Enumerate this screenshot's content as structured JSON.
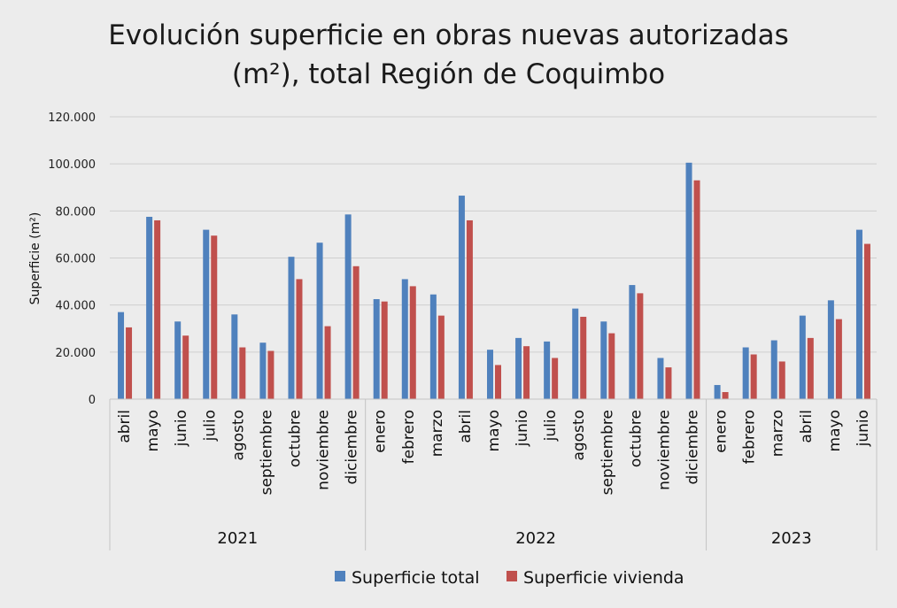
{
  "chart_data": {
    "type": "bar",
    "title_line1": "Evolución superficie en obras nuevas autorizadas",
    "title_line2": "(m²), total Región de Coquimbo",
    "ylabel": "Superficie  (m²)",
    "xlabel": "",
    "ylim": [
      0,
      120000
    ],
    "yticks": [
      0,
      20000,
      40000,
      60000,
      80000,
      100000,
      120000
    ],
    "ytick_labels": [
      "0",
      "20.000",
      "40.000",
      "60.000",
      "80.000",
      "100.000",
      "120.000"
    ],
    "grid": true,
    "legend_position": "bottom",
    "groups": [
      {
        "label": "2021",
        "categories": [
          "abril",
          "mayo",
          "junio",
          "julio",
          "agosto",
          "septiembre",
          "octubre",
          "noviembre",
          "diciembre"
        ]
      },
      {
        "label": "2022",
        "categories": [
          "enero",
          "febrero",
          "marzo",
          "abril",
          "mayo",
          "junio",
          "julio",
          "agosto",
          "septiembre",
          "octubre",
          "noviembre",
          "diciembre"
        ]
      },
      {
        "label": "2023",
        "categories": [
          "enero",
          "febrero",
          "marzo",
          "abril",
          "mayo",
          "junio"
        ]
      }
    ],
    "series": [
      {
        "name": "Superficie total",
        "color": "#4f81bd",
        "values": [
          37000,
          77500,
          33000,
          72000,
          36000,
          24000,
          60500,
          66500,
          78500,
          42500,
          51000,
          44500,
          86500,
          21000,
          26000,
          24500,
          38500,
          33000,
          48500,
          17500,
          100500,
          6000,
          22000,
          25000,
          35500,
          42000,
          72000
        ]
      },
      {
        "name": "Superficie vivienda",
        "color": "#c0504d",
        "values": [
          30500,
          76000,
          27000,
          69500,
          22000,
          20500,
          51000,
          31000,
          56500,
          41500,
          48000,
          35500,
          76000,
          14500,
          22500,
          17500,
          35000,
          28000,
          45000,
          13500,
          93000,
          3000,
          19000,
          16000,
          26000,
          34000,
          66000
        ]
      }
    ]
  }
}
